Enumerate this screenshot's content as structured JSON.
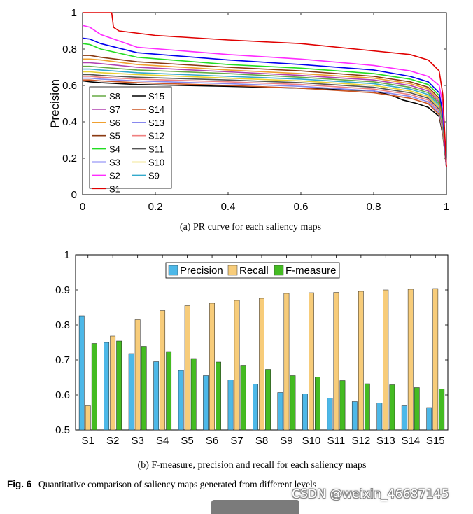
{
  "chart_data": [
    {
      "type": "line",
      "title": "",
      "caption": "(a) PR curve for each saliency maps",
      "xlabel": "",
      "ylabel": "Precision",
      "xlim": [
        0,
        1
      ],
      "ylim": [
        0,
        1
      ],
      "xticks": [
        "0",
        "0.2",
        "0.4",
        "0.6",
        "0.8",
        "1"
      ],
      "yticks": [
        "0",
        "0.2",
        "0.4",
        "0.6",
        "0.8",
        "1"
      ],
      "legend_position": "bottom-left",
      "legend_order": [
        "S8",
        "S15",
        "S7",
        "S14",
        "S6",
        "S13",
        "S5",
        "S12",
        "S4",
        "S11",
        "S3",
        "S10",
        "S2",
        "S9",
        "S1"
      ],
      "series": [
        {
          "name": "S1",
          "color": "#e00000",
          "x": [
            0,
            0.08,
            0.085,
            0.1,
            0.2,
            0.4,
            0.6,
            0.75,
            0.9,
            0.95,
            0.98,
            0.99,
            1.0
          ],
          "y": [
            1.0,
            1.0,
            0.92,
            0.9,
            0.875,
            0.85,
            0.83,
            0.8,
            0.77,
            0.74,
            0.68,
            0.55,
            0.15
          ]
        },
        {
          "name": "S2",
          "color": "#ff2bff",
          "x": [
            0,
            0.02,
            0.05,
            0.15,
            0.4,
            0.6,
            0.8,
            0.9,
            0.95,
            0.98,
            0.99,
            1.0
          ],
          "y": [
            0.93,
            0.92,
            0.88,
            0.81,
            0.77,
            0.745,
            0.71,
            0.68,
            0.65,
            0.6,
            0.5,
            0.15
          ]
        },
        {
          "name": "S3",
          "color": "#0000ee",
          "x": [
            0,
            0.02,
            0.05,
            0.15,
            0.4,
            0.6,
            0.8,
            0.9,
            0.95,
            0.98,
            0.99,
            1.0
          ],
          "y": [
            0.86,
            0.855,
            0.83,
            0.78,
            0.74,
            0.715,
            0.685,
            0.65,
            0.62,
            0.56,
            0.45,
            0.15
          ]
        },
        {
          "name": "S4",
          "color": "#22dd22",
          "x": [
            0,
            0.02,
            0.05,
            0.15,
            0.4,
            0.6,
            0.8,
            0.9,
            0.95,
            0.98,
            0.99,
            1.0
          ],
          "y": [
            0.83,
            0.825,
            0.8,
            0.755,
            0.715,
            0.695,
            0.665,
            0.635,
            0.605,
            0.545,
            0.44,
            0.15
          ]
        },
        {
          "name": "S5",
          "color": "#8b3a12",
          "x": [
            0,
            0.02,
            0.05,
            0.15,
            0.4,
            0.6,
            0.8,
            0.9,
            0.95,
            0.98,
            0.99,
            1.0
          ],
          "y": [
            0.765,
            0.765,
            0.755,
            0.73,
            0.7,
            0.68,
            0.65,
            0.62,
            0.59,
            0.53,
            0.43,
            0.15
          ]
        },
        {
          "name": "S6",
          "color": "#f0a030",
          "x": [
            0,
            0.02,
            0.05,
            0.15,
            0.4,
            0.6,
            0.8,
            0.9,
            0.95,
            0.98,
            0.99,
            1.0
          ],
          "y": [
            0.745,
            0.745,
            0.74,
            0.715,
            0.685,
            0.665,
            0.64,
            0.61,
            0.58,
            0.52,
            0.42,
            0.15
          ]
        },
        {
          "name": "S7",
          "color": "#b040b0",
          "x": [
            0,
            0.02,
            0.05,
            0.15,
            0.4,
            0.6,
            0.8,
            0.9,
            0.95,
            0.98,
            0.99,
            1.0
          ],
          "y": [
            0.725,
            0.725,
            0.72,
            0.7,
            0.675,
            0.655,
            0.63,
            0.6,
            0.57,
            0.51,
            0.41,
            0.15
          ]
        },
        {
          "name": "S8",
          "color": "#66aa44",
          "x": [
            0,
            0.02,
            0.05,
            0.15,
            0.4,
            0.6,
            0.8,
            0.9,
            0.95,
            0.98,
            0.99,
            1.0
          ],
          "y": [
            0.705,
            0.705,
            0.7,
            0.685,
            0.665,
            0.645,
            0.62,
            0.59,
            0.56,
            0.5,
            0.4,
            0.15
          ]
        },
        {
          "name": "S9",
          "color": "#33aacc",
          "x": [
            0,
            0.02,
            0.05,
            0.15,
            0.4,
            0.6,
            0.8,
            0.9,
            0.95,
            0.98,
            0.99,
            1.0
          ],
          "y": [
            0.69,
            0.69,
            0.685,
            0.67,
            0.65,
            0.635,
            0.61,
            0.58,
            0.55,
            0.49,
            0.39,
            0.15
          ]
        },
        {
          "name": "S10",
          "color": "#e8d030",
          "x": [
            0,
            0.02,
            0.05,
            0.15,
            0.4,
            0.6,
            0.8,
            0.9,
            0.95,
            0.98,
            0.99,
            1.0
          ],
          "y": [
            0.675,
            0.675,
            0.67,
            0.66,
            0.64,
            0.625,
            0.6,
            0.57,
            0.54,
            0.48,
            0.38,
            0.15
          ]
        },
        {
          "name": "S11",
          "color": "#555555",
          "x": [
            0,
            0.02,
            0.05,
            0.15,
            0.4,
            0.6,
            0.8,
            0.9,
            0.95,
            0.98,
            0.99,
            1.0
          ],
          "y": [
            0.66,
            0.66,
            0.655,
            0.645,
            0.63,
            0.615,
            0.59,
            0.56,
            0.53,
            0.47,
            0.37,
            0.15
          ]
        },
        {
          "name": "S12",
          "color": "#f08080",
          "x": [
            0,
            0.02,
            0.05,
            0.15,
            0.4,
            0.6,
            0.8,
            0.9,
            0.95,
            0.98,
            0.99,
            1.0
          ],
          "y": [
            0.65,
            0.65,
            0.645,
            0.635,
            0.62,
            0.605,
            0.58,
            0.55,
            0.52,
            0.46,
            0.36,
            0.15
          ]
        },
        {
          "name": "S13",
          "color": "#8888ee",
          "x": [
            0,
            0.02,
            0.05,
            0.15,
            0.4,
            0.6,
            0.8,
            0.9,
            0.95,
            0.98,
            0.99,
            1.0
          ],
          "y": [
            0.64,
            0.64,
            0.635,
            0.625,
            0.61,
            0.595,
            0.57,
            0.54,
            0.51,
            0.45,
            0.35,
            0.15
          ]
        },
        {
          "name": "S14",
          "color": "#cc5522",
          "x": [
            0,
            0.02,
            0.05,
            0.15,
            0.4,
            0.6,
            0.8,
            0.9,
            0.95,
            0.98,
            0.99,
            1.0
          ],
          "y": [
            0.63,
            0.63,
            0.625,
            0.615,
            0.6,
            0.585,
            0.56,
            0.53,
            0.5,
            0.44,
            0.34,
            0.15
          ]
        },
        {
          "name": "S15",
          "color": "#000000",
          "x": [
            0,
            0.02,
            0.05,
            0.15,
            0.4,
            0.6,
            0.8,
            0.85,
            0.88,
            0.92,
            0.95,
            0.98,
            0.99,
            1.0
          ],
          "y": [
            0.625,
            0.62,
            0.615,
            0.605,
            0.595,
            0.585,
            0.57,
            0.545,
            0.52,
            0.5,
            0.48,
            0.43,
            0.33,
            0.15
          ]
        }
      ]
    },
    {
      "type": "bar",
      "title": "",
      "caption": "(b) F-measure, precision and recall for each saliency maps",
      "xlabel": "",
      "ylabel": "",
      "ylim": [
        0.5,
        1
      ],
      "yticks": [
        "0.5",
        "0.6",
        "0.7",
        "0.8",
        "0.9",
        "1"
      ],
      "legend_position": "top-center",
      "categories": [
        "S1",
        "S2",
        "S3",
        "S4",
        "S5",
        "S6",
        "S7",
        "S8",
        "S9",
        "S10",
        "S11",
        "S12",
        "S13",
        "S14",
        "S15"
      ],
      "series": [
        {
          "name": "Precision",
          "color": "#4db8e8",
          "values": [
            0.826,
            0.75,
            0.718,
            0.695,
            0.67,
            0.655,
            0.643,
            0.631,
            0.607,
            0.603,
            0.591,
            0.581,
            0.577,
            0.569,
            0.564
          ]
        },
        {
          "name": "Recall",
          "color": "#f7cc7a",
          "values": [
            0.569,
            0.768,
            0.815,
            0.841,
            0.855,
            0.862,
            0.87,
            0.876,
            0.89,
            0.892,
            0.893,
            0.896,
            0.9,
            0.902,
            0.904
          ]
        },
        {
          "name": "F-measure",
          "color": "#44bb22",
          "values": [
            0.747,
            0.754,
            0.739,
            0.724,
            0.704,
            0.694,
            0.685,
            0.673,
            0.655,
            0.651,
            0.641,
            0.632,
            0.629,
            0.621,
            0.617
          ]
        }
      ]
    }
  ],
  "figure_caption": {
    "label": "Fig. 6",
    "text": "Quantitative comparison of saliency maps generated from different levels"
  },
  "watermark": "CSDN @weixin_46687145"
}
